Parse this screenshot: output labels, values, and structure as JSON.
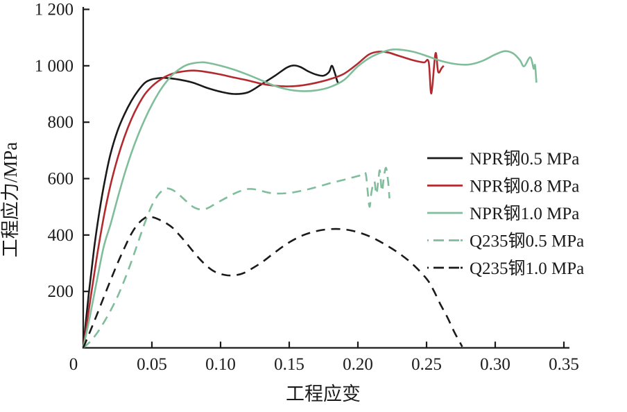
{
  "figure": {
    "background": "#ffffff",
    "axis_color": "#1a1a1a"
  },
  "chart_data": {
    "type": "line",
    "title": "",
    "xlabel": "工程应变",
    "ylabel": "工程应力/MPa",
    "xlim": [
      0,
      0.35
    ],
    "ylim": [
      0,
      1200
    ],
    "grid": false,
    "legend_position": "right-middle",
    "x_ticks": [
      0,
      0.05,
      0.1,
      0.15,
      0.2,
      0.25,
      0.3,
      0.35
    ],
    "x_tick_labels": [
      "0",
      "0.05",
      "0.10",
      "0.15",
      "0.20",
      "0.25",
      "0.30",
      "0.35"
    ],
    "y_ticks": [
      200,
      400,
      600,
      800,
      1000,
      1200
    ],
    "y_tick_labels": [
      "200",
      "400",
      "600",
      "800",
      "1 000",
      "1 200"
    ],
    "series": [
      {
        "key": "npr-steel-0-5mpa",
        "name": "NPR钢0.5 MPa",
        "color": "#1a1a1a",
        "style": "solid",
        "points": [
          [
            0,
            0
          ],
          [
            0.004,
            190
          ],
          [
            0.008,
            355
          ],
          [
            0.012,
            490
          ],
          [
            0.016,
            600
          ],
          [
            0.02,
            690
          ],
          [
            0.025,
            770
          ],
          [
            0.03,
            828
          ],
          [
            0.035,
            875
          ],
          [
            0.04,
            912
          ],
          [
            0.045,
            940
          ],
          [
            0.05,
            952
          ],
          [
            0.055,
            956
          ],
          [
            0.06,
            957
          ],
          [
            0.07,
            951
          ],
          [
            0.08,
            940
          ],
          [
            0.09,
            922
          ],
          [
            0.1,
            908
          ],
          [
            0.11,
            900
          ],
          [
            0.12,
            906
          ],
          [
            0.13,
            935
          ],
          [
            0.14,
            966
          ],
          [
            0.148,
            993
          ],
          [
            0.153,
            1001
          ],
          [
            0.158,
            996
          ],
          [
            0.164,
            980
          ],
          [
            0.17,
            968
          ],
          [
            0.175,
            965
          ],
          [
            0.179,
            978
          ],
          [
            0.181,
            1000
          ],
          [
            0.183,
            978
          ],
          [
            0.185,
            945
          ],
          [
            0.186,
            938
          ]
        ]
      },
      {
        "key": "npr-steel-0-8mpa",
        "name": "NPR钢0.8 MPa",
        "color": "#b22a2e",
        "style": "solid",
        "points": [
          [
            0,
            0
          ],
          [
            0.005,
            165
          ],
          [
            0.01,
            325
          ],
          [
            0.015,
            465
          ],
          [
            0.02,
            580
          ],
          [
            0.025,
            672
          ],
          [
            0.03,
            748
          ],
          [
            0.035,
            810
          ],
          [
            0.04,
            860
          ],
          [
            0.045,
            900
          ],
          [
            0.05,
            927
          ],
          [
            0.055,
            947
          ],
          [
            0.06,
            962
          ],
          [
            0.065,
            972
          ],
          [
            0.07,
            978
          ],
          [
            0.08,
            983
          ],
          [
            0.09,
            978
          ],
          [
            0.1,
            969
          ],
          [
            0.11,
            958
          ],
          [
            0.12,
            948
          ],
          [
            0.13,
            936
          ],
          [
            0.14,
            929
          ],
          [
            0.15,
            927
          ],
          [
            0.16,
            931
          ],
          [
            0.17,
            940
          ],
          [
            0.18,
            953
          ],
          [
            0.19,
            972
          ],
          [
            0.2,
            1008
          ],
          [
            0.208,
            1040
          ],
          [
            0.215,
            1050
          ],
          [
            0.222,
            1047
          ],
          [
            0.23,
            1035
          ],
          [
            0.24,
            1020
          ],
          [
            0.248,
            1012
          ],
          [
            0.2515,
            1014
          ],
          [
            0.2535,
            902
          ],
          [
            0.2565,
            1044
          ],
          [
            0.2585,
            978
          ],
          [
            0.261,
            992
          ],
          [
            0.2625,
            1000
          ]
        ]
      },
      {
        "key": "npr-steel-1-0mpa",
        "name": "NPR钢1.0 MPa",
        "color": "#7fbd9b",
        "style": "solid",
        "points": [
          [
            0,
            0
          ],
          [
            0.005,
            115
          ],
          [
            0.01,
            240
          ],
          [
            0.015,
            360
          ],
          [
            0.02,
            440
          ],
          [
            0.025,
            530
          ],
          [
            0.03,
            615
          ],
          [
            0.035,
            690
          ],
          [
            0.04,
            755
          ],
          [
            0.045,
            812
          ],
          [
            0.05,
            862
          ],
          [
            0.055,
            905
          ],
          [
            0.06,
            940
          ],
          [
            0.065,
            968
          ],
          [
            0.07,
            988
          ],
          [
            0.075,
            1002
          ],
          [
            0.08,
            1009
          ],
          [
            0.085,
            1012
          ],
          [
            0.09,
            1011
          ],
          [
            0.1,
            1000
          ],
          [
            0.11,
            986
          ],
          [
            0.12,
            968
          ],
          [
            0.13,
            948
          ],
          [
            0.14,
            928
          ],
          [
            0.15,
            915
          ],
          [
            0.16,
            910
          ],
          [
            0.17,
            913
          ],
          [
            0.18,
            925
          ],
          [
            0.19,
            950
          ],
          [
            0.2,
            998
          ],
          [
            0.21,
            1032
          ],
          [
            0.22,
            1052
          ],
          [
            0.228,
            1058
          ],
          [
            0.24,
            1050
          ],
          [
            0.25,
            1035
          ],
          [
            0.26,
            1018
          ],
          [
            0.27,
            1007
          ],
          [
            0.28,
            1004
          ],
          [
            0.29,
            1016
          ],
          [
            0.3,
            1040
          ],
          [
            0.307,
            1052
          ],
          [
            0.313,
            1044
          ],
          [
            0.318,
            1020
          ],
          [
            0.321,
            998
          ],
          [
            0.3255,
            1030
          ],
          [
            0.328,
            990
          ],
          [
            0.329,
            1002
          ],
          [
            0.33,
            940
          ]
        ]
      },
      {
        "key": "q235-steel-0-5mpa",
        "name": "Q235钢0.5 MPa",
        "color": "#7fbd9b",
        "style": "dashed",
        "points": [
          [
            0,
            0
          ],
          [
            0.005,
            22
          ],
          [
            0.01,
            52
          ],
          [
            0.015,
            90
          ],
          [
            0.02,
            133
          ],
          [
            0.025,
            182
          ],
          [
            0.03,
            240
          ],
          [
            0.035,
            305
          ],
          [
            0.04,
            375
          ],
          [
            0.045,
            445
          ],
          [
            0.05,
            505
          ],
          [
            0.055,
            545
          ],
          [
            0.06,
            564
          ],
          [
            0.065,
            560
          ],
          [
            0.07,
            542
          ],
          [
            0.075,
            520
          ],
          [
            0.08,
            500
          ],
          [
            0.085,
            491
          ],
          [
            0.09,
            494
          ],
          [
            0.095,
            507
          ],
          [
            0.1,
            521
          ],
          [
            0.105,
            534
          ],
          [
            0.11,
            547
          ],
          [
            0.115,
            557
          ],
          [
            0.12,
            563
          ],
          [
            0.125,
            562
          ],
          [
            0.13,
            556
          ],
          [
            0.135,
            550
          ],
          [
            0.14,
            547
          ],
          [
            0.15,
            549
          ],
          [
            0.16,
            558
          ],
          [
            0.17,
            570
          ],
          [
            0.18,
            584
          ],
          [
            0.19,
            596
          ],
          [
            0.196,
            604
          ],
          [
            0.202,
            612
          ],
          [
            0.2055,
            620
          ],
          [
            0.207,
            560
          ],
          [
            0.2085,
            500
          ],
          [
            0.21,
            555
          ],
          [
            0.212,
            590
          ],
          [
            0.2135,
            545
          ],
          [
            0.215,
            600
          ],
          [
            0.216,
            628
          ],
          [
            0.2175,
            555
          ],
          [
            0.219,
            608
          ],
          [
            0.2205,
            638
          ],
          [
            0.222,
            590
          ],
          [
            0.223,
            530
          ]
        ]
      },
      {
        "key": "q235-steel-1-0mpa",
        "name": "Q235钢1.0 MPa",
        "color": "#1a1a1a",
        "style": "dashed",
        "points": [
          [
            0,
            0
          ],
          [
            0.005,
            58
          ],
          [
            0.01,
            118
          ],
          [
            0.015,
            180
          ],
          [
            0.02,
            241
          ],
          [
            0.025,
            300
          ],
          [
            0.03,
            354
          ],
          [
            0.035,
            404
          ],
          [
            0.04,
            440
          ],
          [
            0.045,
            461
          ],
          [
            0.048,
            465
          ],
          [
            0.052,
            461
          ],
          [
            0.056,
            453
          ],
          [
            0.06,
            443
          ],
          [
            0.065,
            426
          ],
          [
            0.07,
            400
          ],
          [
            0.075,
            372
          ],
          [
            0.08,
            342
          ],
          [
            0.085,
            314
          ],
          [
            0.09,
            290
          ],
          [
            0.095,
            272
          ],
          [
            0.1,
            262
          ],
          [
            0.105,
            257
          ],
          [
            0.11,
            257
          ],
          [
            0.115,
            262
          ],
          [
            0.12,
            273
          ],
          [
            0.13,
            303
          ],
          [
            0.14,
            340
          ],
          [
            0.15,
            374
          ],
          [
            0.16,
            399
          ],
          [
            0.17,
            414
          ],
          [
            0.18,
            421
          ],
          [
            0.19,
            420
          ],
          [
            0.2,
            410
          ],
          [
            0.21,
            392
          ],
          [
            0.22,
            366
          ],
          [
            0.23,
            335
          ],
          [
            0.24,
            296
          ],
          [
            0.25,
            245
          ],
          [
            0.255,
            205
          ],
          [
            0.26,
            155
          ],
          [
            0.265,
            110
          ],
          [
            0.27,
            58
          ],
          [
            0.274,
            22
          ],
          [
            0.276,
            4
          ]
        ]
      }
    ]
  }
}
